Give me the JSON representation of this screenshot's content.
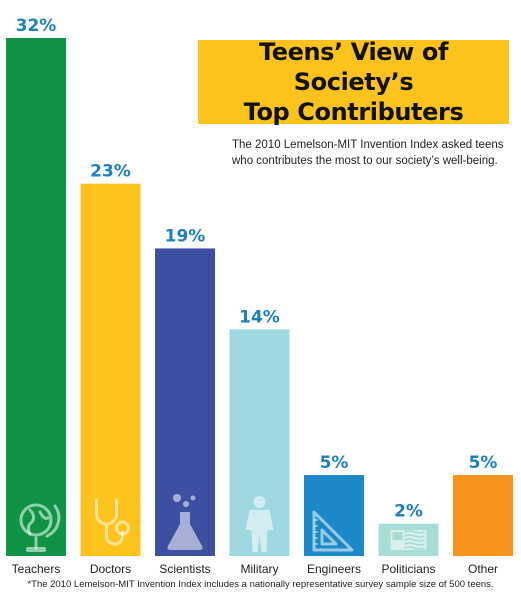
{
  "header": {
    "title_line1": "Teens’ View of Society’s",
    "title_line2": "Top Contributers",
    "subtitle_line1": "The 2010 Lemelson-MIT Invention Index asked teens",
    "subtitle_line2": "who contributes the most to our society’s well-being."
  },
  "footnote": "*The 2010 Lemelson-MIT Invention Index includes a nationally representative survey sample size of 500 teens.",
  "colors": {
    "title_box": "#fbc31b",
    "value_label": "#1b7fc0"
  },
  "chart_data": {
    "type": "bar",
    "title": "Teens’ View of Society’s Top Contributers",
    "categories": [
      "Teachers",
      "Doctors",
      "Scientists",
      "Military",
      "Engineers",
      "Politicians",
      "Other"
    ],
    "values": [
      32,
      23,
      19,
      14,
      5,
      2,
      5
    ],
    "value_suffix": "%",
    "value_labels": [
      "32%",
      "23%",
      "19%",
      "14%",
      "5%",
      "2%",
      "5%"
    ],
    "colors": [
      "#0f9445",
      "#fbc31b",
      "#3d4fa1",
      "#9ed8e1",
      "#1b89c8",
      "#a6ddd6",
      "#f7941d"
    ],
    "icons": [
      "globe-icon",
      "stethoscope-icon",
      "flask-icon",
      "soldier-icon",
      "set-square-icon",
      "flag-icon",
      ""
    ],
    "ylim": [
      0,
      32
    ],
    "grid": false,
    "legend": "none"
  }
}
